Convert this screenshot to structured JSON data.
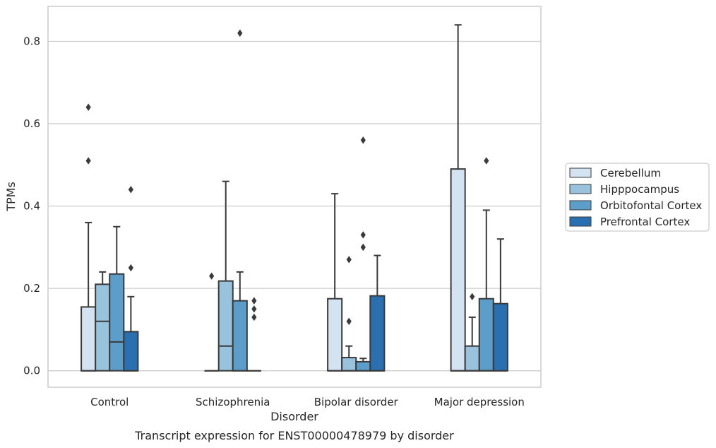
{
  "chart_data": {
    "type": "box",
    "caption": "Transcript expression for ENST00000478979 by disorder",
    "xlabel": "Disorder",
    "ylabel": "TPMs",
    "ylim": [
      -0.04,
      0.885
    ],
    "yticks": [
      0.0,
      0.2,
      0.4,
      0.6,
      0.8
    ],
    "ytick_labels": [
      "0.0",
      "0.2",
      "0.4",
      "0.6",
      "0.8"
    ],
    "grid": "horizontal",
    "legend_position": "right",
    "categories": [
      "Control",
      "Schizophrenia",
      "Bipolar disorder",
      "Major depression"
    ],
    "series": [
      {
        "name": "Cerebellum",
        "color": "#d3e3f1",
        "boxes": [
          {
            "q1": 0.0,
            "median": 0.0,
            "q3": 0.155,
            "whisker_low": 0.0,
            "whisker_high": 0.36,
            "outliers": [
              0.51,
              0.64
            ]
          },
          {
            "q1": 0.0,
            "median": 0.0,
            "q3": 0.0,
            "whisker_low": 0.0,
            "whisker_high": 0.0,
            "outliers": [
              0.23
            ]
          },
          {
            "q1": 0.0,
            "median": 0.0,
            "q3": 0.175,
            "whisker_low": 0.0,
            "whisker_high": 0.43,
            "outliers": []
          },
          {
            "q1": 0.0,
            "median": 0.0,
            "q3": 0.49,
            "whisker_low": 0.0,
            "whisker_high": 0.84,
            "outliers": []
          }
        ]
      },
      {
        "name": "Hipppocampus",
        "color": "#99c2dd",
        "boxes": [
          {
            "q1": 0.0,
            "median": 0.12,
            "q3": 0.21,
            "whisker_low": 0.0,
            "whisker_high": 0.24,
            "outliers": []
          },
          {
            "q1": 0.0,
            "median": 0.06,
            "q3": 0.218,
            "whisker_low": 0.0,
            "whisker_high": 0.46,
            "outliers": []
          },
          {
            "q1": 0.0,
            "median": 0.0,
            "q3": 0.032,
            "whisker_low": 0.0,
            "whisker_high": 0.06,
            "outliers": [
              0.12,
              0.27
            ]
          },
          {
            "q1": 0.0,
            "median": 0.0,
            "q3": 0.06,
            "whisker_low": 0.0,
            "whisker_high": 0.13,
            "outliers": [
              0.18
            ]
          }
        ]
      },
      {
        "name": "Orbitofontal Cortex",
        "color": "#5c9ec9",
        "boxes": [
          {
            "q1": 0.0,
            "median": 0.07,
            "q3": 0.235,
            "whisker_low": 0.0,
            "whisker_high": 0.35,
            "outliers": []
          },
          {
            "q1": 0.0,
            "median": 0.0,
            "q3": 0.17,
            "whisker_low": 0.0,
            "whisker_high": 0.24,
            "outliers": [
              0.82
            ]
          },
          {
            "q1": 0.0,
            "median": 0.0,
            "q3": 0.022,
            "whisker_low": 0.0,
            "whisker_high": 0.03,
            "outliers": [
              0.3,
              0.33,
              0.56
            ]
          },
          {
            "q1": 0.0,
            "median": 0.0,
            "q3": 0.175,
            "whisker_low": 0.0,
            "whisker_high": 0.39,
            "outliers": [
              0.51
            ]
          }
        ]
      },
      {
        "name": "Prefrontal Cortex",
        "color": "#2a6fb0",
        "boxes": [
          {
            "q1": 0.0,
            "median": 0.0,
            "q3": 0.095,
            "whisker_low": 0.0,
            "whisker_high": 0.18,
            "outliers": [
              0.25,
              0.44
            ]
          },
          {
            "q1": 0.0,
            "median": 0.0,
            "q3": 0.0,
            "whisker_low": 0.0,
            "whisker_high": 0.0,
            "outliers": [
              0.13,
              0.15,
              0.17
            ]
          },
          {
            "q1": 0.0,
            "median": 0.0,
            "q3": 0.182,
            "whisker_low": 0.0,
            "whisker_high": 0.28,
            "outliers": []
          },
          {
            "q1": 0.0,
            "median": 0.0,
            "q3": 0.163,
            "whisker_low": 0.0,
            "whisker_high": 0.32,
            "outliers": []
          }
        ]
      }
    ]
  }
}
